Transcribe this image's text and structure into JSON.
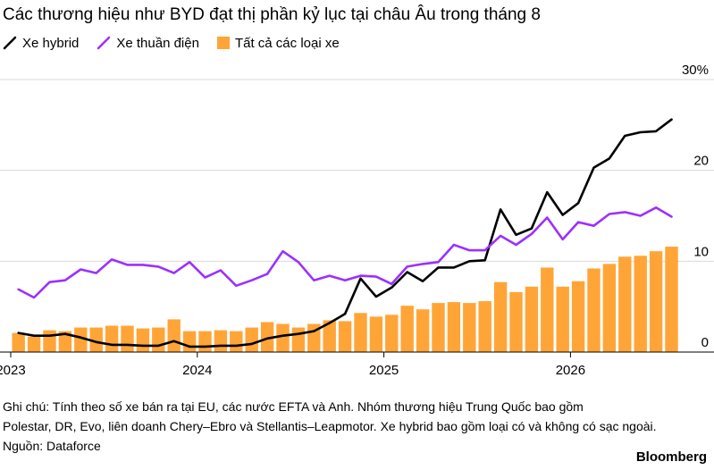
{
  "header": {
    "title": "Các thương hiệu như BYD đạt thị phần kỷ lục tại châu Âu trong tháng 8"
  },
  "legend": {
    "hybrid": "Xe hybrid",
    "electric": "Xe thuần điện",
    "all": "Tất cả các loại xe"
  },
  "colors": {
    "hybrid": "#000000",
    "electric": "#9b30ff",
    "all": "#ffa538",
    "grid": "#d9d9d9"
  },
  "chart_data": {
    "type": "bar",
    "x": [
      "2023-01",
      "2023-02",
      "2023-03",
      "2023-04",
      "2023-05",
      "2023-06",
      "2023-07",
      "2023-08",
      "2023-09",
      "2023-10",
      "2023-11",
      "2023-12",
      "2024-01",
      "2024-02",
      "2024-03",
      "2024-04",
      "2024-05",
      "2024-06",
      "2024-07",
      "2024-08",
      "2024-09",
      "2024-10",
      "2024-11",
      "2024-12",
      "2025-01",
      "2025-02",
      "2025-03",
      "2025-04",
      "2025-05",
      "2025-06",
      "2025-07",
      "2025-08",
      "2025-09",
      "2025-10",
      "2025-11",
      "2025-12",
      "2026-01",
      "2026-02",
      "2026-03",
      "2026-04",
      "2026-05",
      "2026-06",
      "2026-07",
      "2026-08"
    ],
    "series": [
      {
        "name": "Tất cả các loại xe",
        "type": "bar",
        "values": [
          2.1,
          1.7,
          2.4,
          2.3,
          2.7,
          2.7,
          2.9,
          2.9,
          2.6,
          2.7,
          3.6,
          2.3,
          2.3,
          2.4,
          2.3,
          2.7,
          3.3,
          3.1,
          2.7,
          3.1,
          3.5,
          3.4,
          4.3,
          3.9,
          4.1,
          5.1,
          4.7,
          5.4,
          5.5,
          5.4,
          5.6,
          7.7,
          6.6,
          7.2,
          9.3,
          7.2,
          7.8,
          9.2,
          9.7,
          10.5,
          10.6,
          11.1,
          11.6,
          0
        ]
      },
      {
        "name": "Xe hybrid",
        "type": "line",
        "values": [
          2.1,
          1.8,
          1.8,
          2.0,
          1.6,
          1.1,
          0.8,
          0.8,
          0.7,
          0.7,
          1.2,
          0.6,
          0.6,
          0.7,
          0.7,
          0.9,
          1.5,
          1.8,
          2.0,
          2.3,
          3.2,
          4.2,
          8.1,
          6.1,
          7.1,
          8.8,
          7.8,
          9.3,
          9.3,
          10.0,
          10.1,
          15.7,
          12.9,
          13.6,
          17.6,
          15.1,
          16.4,
          20.3,
          21.3,
          23.8,
          24.2,
          24.3,
          25.6,
          0
        ]
      },
      {
        "name": "Xe thuần điện",
        "type": "line",
        "values": [
          6.9,
          6.0,
          7.7,
          7.9,
          9.1,
          8.7,
          10.2,
          9.6,
          9.6,
          9.4,
          8.7,
          9.9,
          8.2,
          9.0,
          7.3,
          7.9,
          8.6,
          11.1,
          9.9,
          7.9,
          8.4,
          7.9,
          8.4,
          8.3,
          7.5,
          9.4,
          9.7,
          9.9,
          11.8,
          11.2,
          11.2,
          12.8,
          11.8,
          13.0,
          14.8,
          12.4,
          14.3,
          13.9,
          15.2,
          15.4,
          15.0,
          15.9,
          14.9,
          0
        ]
      }
    ],
    "ylim": [
      0,
      30
    ],
    "yticks": [
      {
        "value": 0,
        "label": "0"
      },
      {
        "value": 10,
        "label": "10"
      },
      {
        "value": 20,
        "label": "20"
      },
      {
        "value": 30,
        "label": "30%"
      }
    ],
    "xticks": [
      {
        "index": 0,
        "label": "2023"
      },
      {
        "index": 12,
        "label": "2024"
      },
      {
        "index": 24,
        "label": "2025"
      },
      {
        "index": 36,
        "label": "2026"
      }
    ],
    "grid": true,
    "legend_position": "top-left"
  },
  "footer": {
    "note_line1": "Ghi chú: Tính theo số xe bán ra tại EU, các nước EFTA và Anh. Nhóm thương hiệu Trung Quốc bao gồm",
    "note_line2": "Polestar, DR, Evo, liên doanh Chery–Ebro và Stellantis–Leapmotor. Xe hybrid bao gồm loại có và không có sạc ngoài.",
    "source": "Nguồn: Dataforce",
    "brand": "Bloomberg"
  }
}
